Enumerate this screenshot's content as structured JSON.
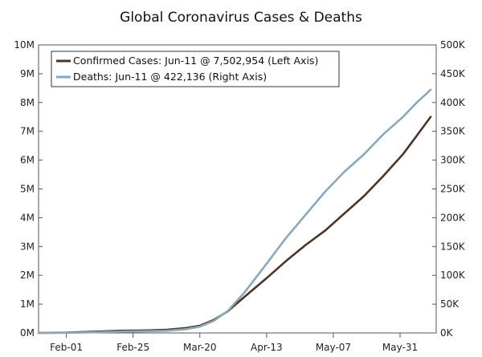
{
  "chart_data": {
    "type": "line",
    "title": "Global Coronavirus Cases & Deaths",
    "x_tick_labels": [
      "Feb-01",
      "Feb-25",
      "Mar-20",
      "Apr-13",
      "May-07",
      "May-31"
    ],
    "x_range": [
      "2020-01-22",
      "2020-06-13"
    ],
    "y_left": {
      "ylim": [
        0,
        10000000
      ],
      "ticks": [
        0,
        1000000,
        2000000,
        3000000,
        4000000,
        5000000,
        6000000,
        7000000,
        8000000,
        9000000,
        10000000
      ],
      "tick_labels": [
        "0M",
        "1M",
        "2M",
        "3M",
        "4M",
        "5M",
        "6M",
        "7M",
        "8M",
        "9M",
        "10M"
      ]
    },
    "y_right": {
      "ylim": [
        0,
        500000
      ],
      "ticks": [
        0,
        50000,
        100000,
        150000,
        200000,
        250000,
        300000,
        350000,
        400000,
        450000,
        500000
      ],
      "tick_labels": [
        "0K",
        "50K",
        "100K",
        "150K",
        "200K",
        "250K",
        "300K",
        "350K",
        "400K",
        "450K",
        "500K"
      ]
    },
    "grid": false,
    "legend_position": "top-left",
    "series": [
      {
        "name": "Confirmed Cases: Jun-11 @ 7,502,954 (Left Axis)",
        "axis": "left",
        "color": "#4a3528",
        "x": [
          "2020-01-22",
          "2020-02-01",
          "2020-02-10",
          "2020-02-20",
          "2020-03-01",
          "2020-03-08",
          "2020-03-15",
          "2020-03-20",
          "2020-03-25",
          "2020-03-30",
          "2020-04-05",
          "2020-04-13",
          "2020-04-20",
          "2020-04-27",
          "2020-05-04",
          "2020-05-11",
          "2020-05-18",
          "2020-05-25",
          "2020-06-01",
          "2020-06-06",
          "2020-06-11"
        ],
        "y": [
          0,
          12000,
          43000,
          76000,
          88000,
          110000,
          170000,
          250000,
          450000,
          750000,
          1250000,
          1900000,
          2500000,
          3050000,
          3550000,
          4150000,
          4750000,
          5450000,
          6200000,
          6850000,
          7502954
        ]
      },
      {
        "name": "Deaths: Jun-11 @ 422,136 (Right Axis)",
        "axis": "right",
        "color": "#8ea7b8",
        "x": [
          "2020-01-22",
          "2020-02-01",
          "2020-02-10",
          "2020-02-20",
          "2020-03-01",
          "2020-03-08",
          "2020-03-15",
          "2020-03-20",
          "2020-03-25",
          "2020-03-30",
          "2020-04-05",
          "2020-04-13",
          "2020-04-20",
          "2020-04-27",
          "2020-05-04",
          "2020-05-11",
          "2020-05-18",
          "2020-05-25",
          "2020-06-01",
          "2020-06-06",
          "2020-06-11"
        ],
        "y": [
          0,
          300,
          1000,
          2200,
          3000,
          3800,
          6500,
          11000,
          21000,
          38000,
          70000,
          120000,
          165000,
          205000,
          245000,
          280000,
          310000,
          345000,
          375000,
          400000,
          422136
        ]
      }
    ]
  }
}
